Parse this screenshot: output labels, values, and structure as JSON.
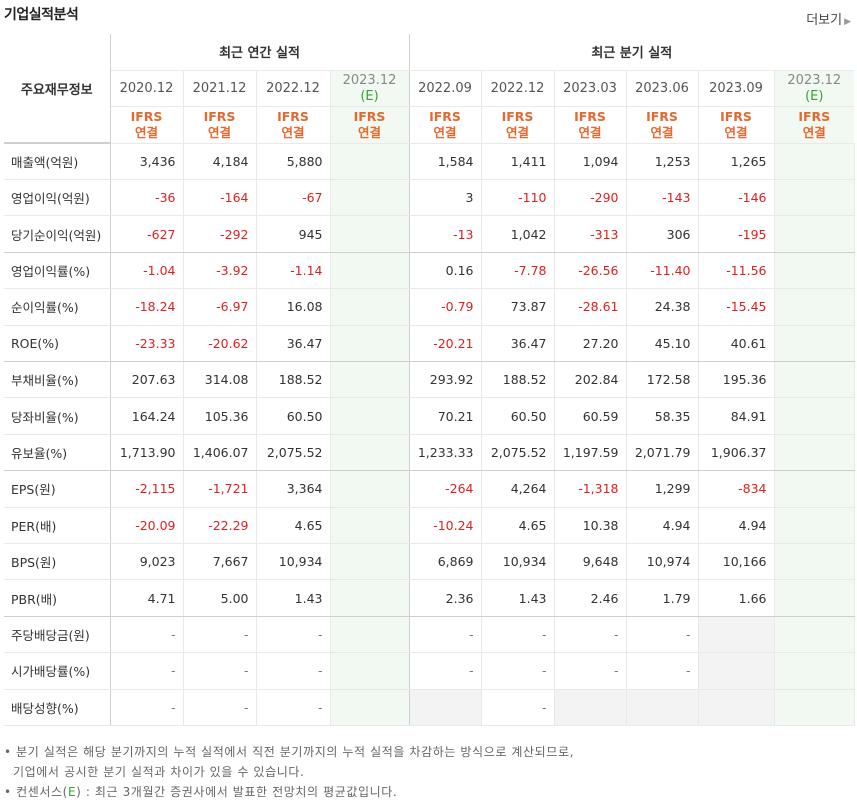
{
  "title": "기업실적분석",
  "more_label": "더보기",
  "header": {
    "row_label": "주요재무정보",
    "annual_group": "최근 연간 실적",
    "quarter_group": "최근 분기 실적",
    "annual_periods": [
      "2020.12",
      "2021.12",
      "2022.12",
      "2023.12"
    ],
    "annual_estimate_tag": "(E)",
    "quarter_periods": [
      "2022.09",
      "2022.12",
      "2023.03",
      "2023.06",
      "2023.09",
      "2023.12"
    ],
    "quarter_estimate_tag": "(E)",
    "ifrs": "IFRS",
    "consolidated": "연결"
  },
  "rows": [
    {
      "label": "매출액(억원)",
      "annual": [
        "3,436",
        "4,184",
        "5,880",
        ""
      ],
      "quarter": [
        "1,584",
        "1,411",
        "1,094",
        "1,253",
        "1,265",
        ""
      ]
    },
    {
      "label": "영업이익(억원)",
      "annual": [
        "-36",
        "-164",
        "-67",
        ""
      ],
      "quarter": [
        "3",
        "-110",
        "-290",
        "-143",
        "-146",
        ""
      ]
    },
    {
      "label": "당기순이익(억원)",
      "annual": [
        "-627",
        "-292",
        "945",
        ""
      ],
      "quarter": [
        "-13",
        "1,042",
        "-313",
        "306",
        "-195",
        ""
      ]
    },
    {
      "label": "영업이익률(%)",
      "annual": [
        "-1.04",
        "-3.92",
        "-1.14",
        ""
      ],
      "quarter": [
        "0.16",
        "-7.78",
        "-26.56",
        "-11.40",
        "-11.56",
        ""
      ]
    },
    {
      "label": "순이익률(%)",
      "annual": [
        "-18.24",
        "-6.97",
        "16.08",
        ""
      ],
      "quarter": [
        "-0.79",
        "73.87",
        "-28.61",
        "24.38",
        "-15.45",
        ""
      ]
    },
    {
      "label": "ROE(%)",
      "annual": [
        "-23.33",
        "-20.62",
        "36.47",
        ""
      ],
      "quarter": [
        "-20.21",
        "36.47",
        "27.20",
        "45.10",
        "40.61",
        ""
      ]
    },
    {
      "label": "부채비율(%)",
      "annual": [
        "207.63",
        "314.08",
        "188.52",
        ""
      ],
      "quarter": [
        "293.92",
        "188.52",
        "202.84",
        "172.58",
        "195.36",
        ""
      ]
    },
    {
      "label": "당좌비율(%)",
      "annual": [
        "164.24",
        "105.36",
        "60.50",
        ""
      ],
      "quarter": [
        "70.21",
        "60.50",
        "60.59",
        "58.35",
        "84.91",
        ""
      ]
    },
    {
      "label": "유보율(%)",
      "annual": [
        "1,713.90",
        "1,406.07",
        "2,075.52",
        ""
      ],
      "quarter": [
        "1,233.33",
        "2,075.52",
        "1,197.59",
        "2,071.79",
        "1,906.37",
        ""
      ]
    },
    {
      "label": "EPS(원)",
      "annual": [
        "-2,115",
        "-1,721",
        "3,364",
        ""
      ],
      "quarter": [
        "-264",
        "4,264",
        "-1,318",
        "1,299",
        "-834",
        ""
      ]
    },
    {
      "label": "PER(배)",
      "annual": [
        "-20.09",
        "-22.29",
        "4.65",
        ""
      ],
      "quarter": [
        "-10.24",
        "4.65",
        "10.38",
        "4.94",
        "4.94",
        ""
      ]
    },
    {
      "label": "BPS(원)",
      "annual": [
        "9,023",
        "7,667",
        "10,934",
        ""
      ],
      "quarter": [
        "6,869",
        "10,934",
        "9,648",
        "10,974",
        "10,166",
        ""
      ]
    },
    {
      "label": "PBR(배)",
      "annual": [
        "4.71",
        "5.00",
        "1.43",
        ""
      ],
      "quarter": [
        "2.36",
        "1.43",
        "2.46",
        "1.79",
        "1.66",
        ""
      ]
    },
    {
      "label": "주당배당금(원)",
      "annual": [
        "-",
        "-",
        "-",
        ""
      ],
      "quarter": [
        "-",
        "-",
        "-",
        "-",
        "",
        ""
      ]
    },
    {
      "label": "시가배당률(%)",
      "annual": [
        "-",
        "-",
        "-",
        ""
      ],
      "quarter": [
        "-",
        "-",
        "-",
        "-",
        "",
        ""
      ]
    },
    {
      "label": "배당성향(%)",
      "annual": [
        "-",
        "-",
        "-",
        ""
      ],
      "quarter": [
        "",
        "-",
        "",
        "",
        "",
        ""
      ]
    }
  ],
  "notes": {
    "line1": "분기 실적은 해당 분기까지의 누적 실적에서 직전 분기까지의 누적 실적을 차감하는 방식으로 계산되므로,",
    "line2": "기업에서 공시한 분기 실적과 차이가 있을 수 있습니다.",
    "line3_prefix": "컨센서스(",
    "line3_e": "E",
    "line3_suffix": ") : 최근 3개월간 증권사에서 발표한 전망치의 평균값입니다."
  },
  "colors": {
    "negative": "#e02020",
    "ifrs": "#e4692e",
    "estimate_tag": "#35a535",
    "estimate_bg": "#f2f8f2"
  }
}
